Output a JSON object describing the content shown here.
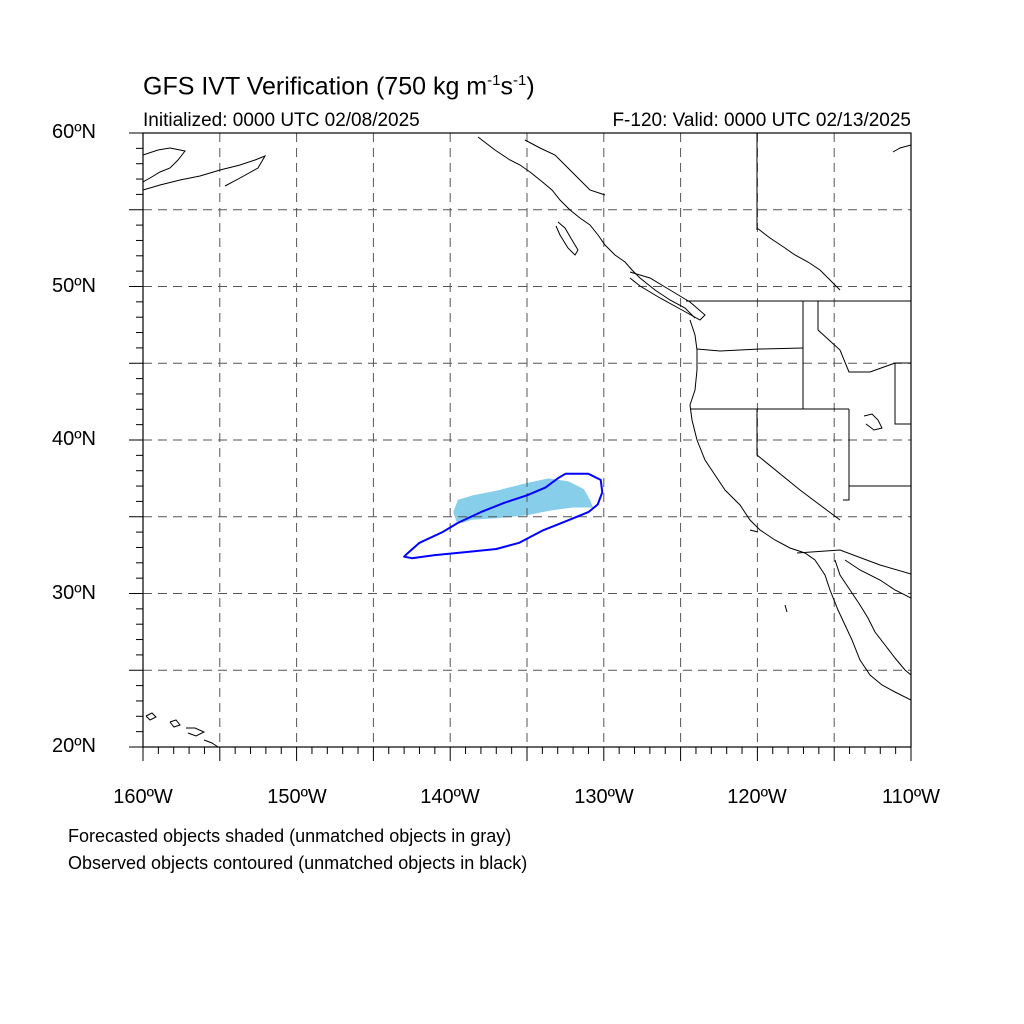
{
  "title": {
    "main": "GFS IVT Verification (750 kg m",
    "sup1": "-1",
    "mid": "s",
    "sup2": "-1",
    "end": ")"
  },
  "subtitle_left": "Initialized: 0000 UTC 02/08/2025",
  "subtitle_right": "F-120: Valid: 0000 UTC 02/13/2025",
  "lat_labels": [
    "60ºN",
    "50ºN",
    "40ºN",
    "30ºN",
    "20ºN"
  ],
  "lon_labels": [
    "160ºW",
    "150ºW",
    "140ºW",
    "130ºW",
    "120ºW",
    "110ºW"
  ],
  "notes": [
    "Forecasted objects shaded (unmatched objects in gray)",
    "Observed objects contoured (unmatched objects in black)"
  ],
  "map": {
    "lon_range": [
      -160,
      -110
    ],
    "lat_range": [
      20,
      60
    ],
    "gridline_lons": [
      -155,
      -150,
      -145,
      -140,
      -135,
      -130,
      -125,
      -120,
      -115
    ],
    "gridline_lats": [
      25,
      30,
      35,
      40,
      45,
      50,
      55
    ],
    "forecast_object_color": "#87ceeb",
    "observed_contour_color": "#0000ff",
    "forecast_object": [
      [
        -139.8,
        35.3
      ],
      [
        -139.5,
        36.1
      ],
      [
        -138.5,
        36.4
      ],
      [
        -137.0,
        36.7
      ],
      [
        -135.0,
        37.2
      ],
      [
        -133.6,
        37.5
      ],
      [
        -132.3,
        37.3
      ],
      [
        -131.3,
        36.8
      ],
      [
        -130.9,
        36.1
      ],
      [
        -130.7,
        35.6
      ],
      [
        -132.0,
        35.6
      ],
      [
        -133.5,
        35.4
      ],
      [
        -135.0,
        35.1
      ],
      [
        -137.0,
        34.9
      ],
      [
        -138.6,
        34.8
      ],
      [
        -139.2,
        34.6
      ],
      [
        -139.6,
        34.7
      ]
    ],
    "observed_contour": [
      [
        -142.8,
        32.6
      ],
      [
        -142.0,
        33.3
      ],
      [
        -140.5,
        34.0
      ],
      [
        -139.5,
        34.6
      ],
      [
        -138.0,
        35.3
      ],
      [
        -136.5,
        35.9
      ],
      [
        -135.0,
        36.4
      ],
      [
        -133.8,
        36.9
      ],
      [
        -133.0,
        37.5
      ],
      [
        -132.5,
        37.8
      ],
      [
        -131.0,
        37.8
      ],
      [
        -130.2,
        37.4
      ],
      [
        -130.1,
        36.6
      ],
      [
        -130.4,
        35.8
      ],
      [
        -131.0,
        35.3
      ],
      [
        -132.5,
        34.7
      ],
      [
        -134.0,
        34.1
      ],
      [
        -135.5,
        33.3
      ],
      [
        -137.0,
        32.9
      ],
      [
        -139.0,
        32.7
      ],
      [
        -141.0,
        32.5
      ],
      [
        -142.5,
        32.3
      ],
      [
        -143.0,
        32.4
      ]
    ]
  }
}
